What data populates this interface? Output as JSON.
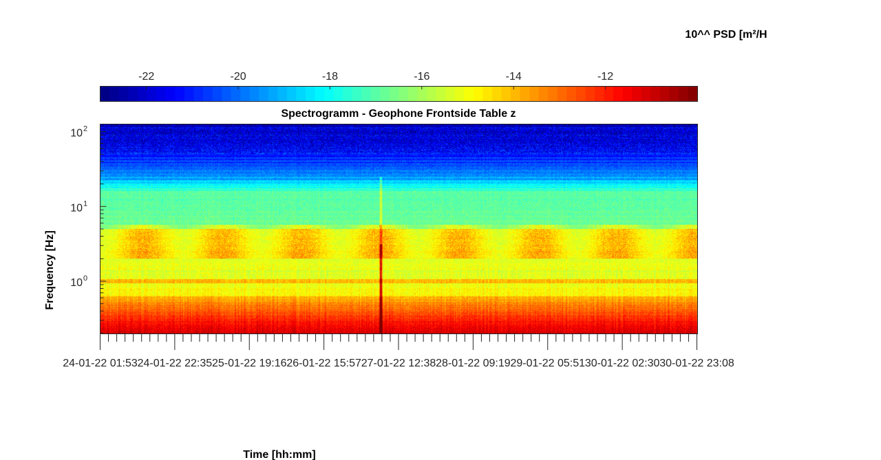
{
  "chart_data": {
    "type": "heatmap",
    "title": "Spectrogramm - Geophone Frontside Table z",
    "xlabel": "Time [hh:mm]",
    "ylabel": "Frequency [Hz]",
    "y_scale": "log",
    "ylim": [
      0.2,
      125
    ],
    "y_tick_values": [
      1,
      10,
      100
    ],
    "y_tick_labels": [
      {
        "base": "10",
        "exp": "0"
      },
      {
        "base": "10",
        "exp": "1"
      },
      {
        "base": "10",
        "exp": "2"
      }
    ],
    "x_tick_labels": [
      "24-01-22 01:53",
      "24-01-22 22:35",
      "25-01-22 19:16",
      "26-01-22 15:57",
      "27-01-22 12:38",
      "28-01-22 09:19",
      "29-01-22 05:51",
      "30-01-22 02:30",
      "30-01-22 23:08"
    ],
    "colorbar": {
      "label": "10^^ PSD [m²/H",
      "location": "top",
      "colormap": "jet",
      "clim": [
        -23,
        -10
      ],
      "tick_values": [
        -22,
        -20,
        -18,
        -16,
        -14,
        -12
      ],
      "tick_labels": [
        "-22",
        "-20",
        "-18",
        "-16",
        "-14",
        "-12"
      ]
    },
    "grid": false
  }
}
